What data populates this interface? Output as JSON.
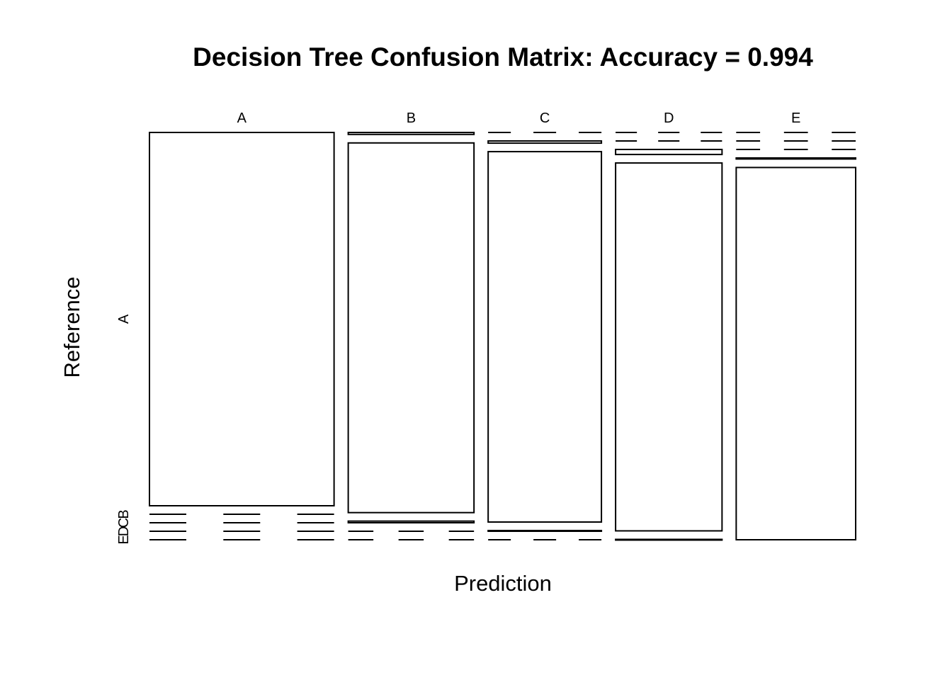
{
  "chart_data": {
    "type": "mosaic",
    "title": "Decision Tree Confusion Matrix: Accuracy = 0.994",
    "xlabel": "Prediction",
    "ylabel": "Reference",
    "categories": [
      "A",
      "B",
      "C",
      "D",
      "E"
    ],
    "x_tick_labels": [
      "A",
      "B",
      "C",
      "D",
      "E"
    ],
    "y_tick_labels": [
      "A",
      "B",
      "C",
      "D",
      "E"
    ],
    "matrix": [
      [
        1672,
        0,
        0,
        0,
        0
      ],
      [
        6,
        1128,
        5,
        0,
        0
      ],
      [
        0,
        6,
        1018,
        2,
        0
      ],
      [
        0,
        0,
        13,
        950,
        1
      ],
      [
        0,
        0,
        0,
        3,
        1079
      ]
    ],
    "matrix_orientation": "rows = Prediction, columns = Reference",
    "accuracy": 0.994
  }
}
